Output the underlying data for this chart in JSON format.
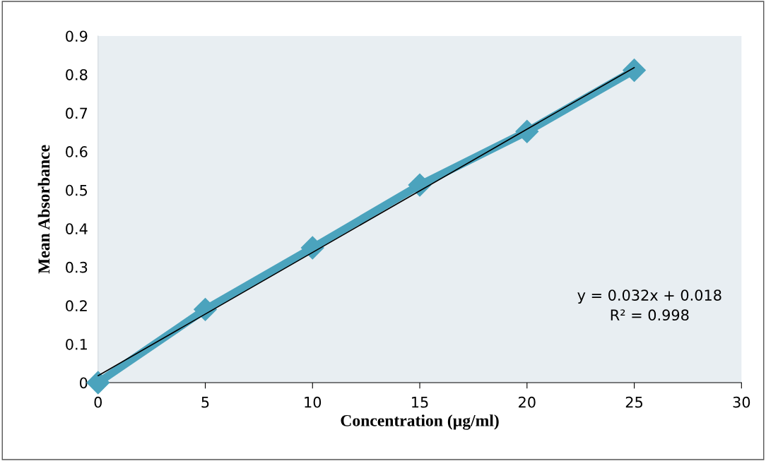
{
  "chart_data": {
    "type": "line",
    "xlabel": "Concentration (µg/ml)",
    "ylabel": "Mean Absorbance",
    "x": [
      0,
      5,
      10,
      15,
      20,
      25
    ],
    "series": [
      {
        "color": "#4ba3bd",
        "values": [
          0,
          0.19,
          0.35,
          0.513,
          0.652,
          0.811
        ],
        "marker": "diamond"
      },
      {
        "type": "line",
        "color": "#000000",
        "x": [
          0,
          25
        ],
        "values": [
          0.018,
          0.818
        ],
        "marker": "none"
      }
    ],
    "xlim": [
      0,
      30
    ],
    "xticks": [
      0,
      5,
      10,
      15,
      20,
      25,
      30
    ],
    "ylim": [
      0,
      0.9
    ],
    "yticks": [
      0,
      0.1,
      0.2,
      0.3,
      0.4,
      0.5,
      0.6,
      0.7,
      0.8,
      0.9
    ],
    "grid": false,
    "legend": false,
    "annotations": [
      "y = 0.032x + 0.018\nR² = 0.998"
    ]
  }
}
